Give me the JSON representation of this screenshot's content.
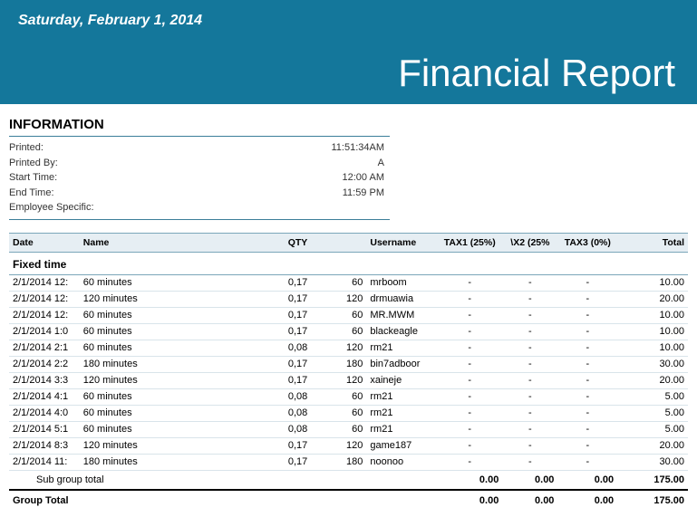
{
  "header": {
    "date_text": "Saturday, February 1, 2014",
    "title": "Financial Report",
    "bg_color": "#14779b"
  },
  "info": {
    "title": "INFORMATION",
    "rows": [
      {
        "label": "Printed:",
        "value": "11:51:34AM"
      },
      {
        "label": "Printed By:",
        "value": "A"
      },
      {
        "label": "Start Time:",
        "value": "12:00 AM"
      },
      {
        "label": "End Time:",
        "value": "11:59 PM"
      },
      {
        "label": "Employee Specific:",
        "value": ""
      }
    ]
  },
  "columns": {
    "date": "Date",
    "name": "Name",
    "blank": "",
    "qty": "QTY",
    "qn": "",
    "user": "Username",
    "tax1": "TAX1 (25%)",
    "tax2": "\\X2 (25%",
    "tax3": "TAX3 (0%)",
    "total": "Total"
  },
  "section_label": "Fixed time",
  "rows": [
    {
      "date": "2/1/2014 12:",
      "name": "60 minutes",
      "qty": "0,17",
      "qn": "60",
      "user": "mrboom",
      "t1": "-",
      "t2": "-",
      "t3": "-",
      "total": "10.00"
    },
    {
      "date": "2/1/2014 12:",
      "name": "120 minutes",
      "qty": "0,17",
      "qn": "120",
      "user": "drmuawia",
      "t1": "-",
      "t2": "-",
      "t3": "-",
      "total": "20.00"
    },
    {
      "date": "2/1/2014 12:",
      "name": "60 minutes",
      "qty": "0,17",
      "qn": "60",
      "user": "MR.MWM",
      "t1": "-",
      "t2": "-",
      "t3": "-",
      "total": "10.00"
    },
    {
      "date": "2/1/2014 1:0",
      "name": "60 minutes",
      "qty": "0,17",
      "qn": "60",
      "user": "blackeagle",
      "t1": "-",
      "t2": "-",
      "t3": "-",
      "total": "10.00"
    },
    {
      "date": "2/1/2014 2:1",
      "name": "60 minutes",
      "qty": "0,08",
      "qn": "120",
      "user": "rm21",
      "t1": "-",
      "t2": "-",
      "t3": "-",
      "total": "10.00"
    },
    {
      "date": "2/1/2014 2:2",
      "name": "180 minutes",
      "qty": "0,17",
      "qn": "180",
      "user": "bin7adboor",
      "t1": "-",
      "t2": "-",
      "t3": "-",
      "total": "30.00"
    },
    {
      "date": "2/1/2014 3:3",
      "name": "120 minutes",
      "qty": "0,17",
      "qn": "120",
      "user": "xaineje",
      "t1": "-",
      "t2": "-",
      "t3": "-",
      "total": "20.00"
    },
    {
      "date": "2/1/2014 4:1",
      "name": "60 minutes",
      "qty": "0,08",
      "qn": "60",
      "user": "rm21",
      "t1": "-",
      "t2": "-",
      "t3": "-",
      "total": "5.00"
    },
    {
      "date": "2/1/2014 4:0",
      "name": "60 minutes",
      "qty": "0,08",
      "qn": "60",
      "user": "rm21",
      "t1": "-",
      "t2": "-",
      "t3": "-",
      "total": "5.00"
    },
    {
      "date": "2/1/2014 5:1",
      "name": "60 minutes",
      "qty": "0,08",
      "qn": "60",
      "user": "rm21",
      "t1": "-",
      "t2": "-",
      "t3": "-",
      "total": "5.00"
    },
    {
      "date": "2/1/2014 8:3",
      "name": "120 minutes",
      "qty": "0,17",
      "qn": "120",
      "user": "game187",
      "t1": "-",
      "t2": "-",
      "t3": "-",
      "total": "20.00"
    },
    {
      "date": "2/1/2014 11:",
      "name": "180 minutes",
      "qty": "0,17",
      "qn": "180",
      "user": "noonoo",
      "t1": "-",
      "t2": "-",
      "t3": "-",
      "total": "30.00"
    }
  ],
  "subtotal": {
    "label": "Sub group total",
    "t1": "0.00",
    "t2": "0.00",
    "t3": "0.00",
    "total": "175.00"
  },
  "grandtotal": {
    "label": "Group Total",
    "t1": "0.00",
    "t2": "0.00",
    "t3": "0.00",
    "total": "175.00"
  },
  "style": {
    "row_border": "#d9e4ea",
    "head_bg": "#e6eef3",
    "rule_color": "#7ba6b9"
  }
}
